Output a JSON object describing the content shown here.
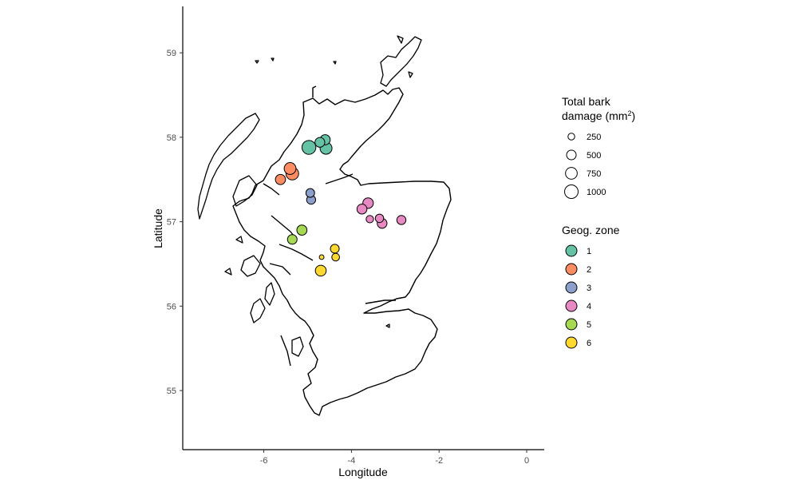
{
  "chart_data": {
    "type": "scatter",
    "xlabel": "Longitude",
    "ylabel": "Latitude",
    "xlim": [
      -7.85,
      0.4
    ],
    "ylim": [
      54.3,
      59.55
    ],
    "x_ticks": [
      -6,
      -4,
      -2,
      0
    ],
    "y_ticks": [
      55,
      56,
      57,
      58,
      59
    ],
    "x_tick_labels": [
      "-6",
      "-4",
      "-2",
      "0"
    ],
    "y_tick_labels": [
      "55",
      "56",
      "57",
      "58",
      "59"
    ],
    "size_legend": {
      "title_line1": "Total bark",
      "title_line2": "damage (mm",
      "title_sup": "2",
      "title_close": ")",
      "entries": [
        {
          "label": "250",
          "value": 250
        },
        {
          "label": "500",
          "value": 500
        },
        {
          "label": "750",
          "value": 750
        },
        {
          "label": "1000",
          "value": 1000
        }
      ]
    },
    "zone_legend": {
      "title": "Geog. zone",
      "entries": [
        {
          "label": "1",
          "color": "#66c2a5"
        },
        {
          "label": "2",
          "color": "#fc8d62"
        },
        {
          "label": "3",
          "color": "#8da0cb"
        },
        {
          "label": "4",
          "color": "#e78ac3"
        },
        {
          "label": "5",
          "color": "#a6d854"
        },
        {
          "label": "6",
          "color": "#ffd92f"
        }
      ]
    },
    "points": [
      {
        "zone": "1",
        "lon": -4.97,
        "lat": 57.88,
        "damage": 1050
      },
      {
        "zone": "1",
        "lon": -4.72,
        "lat": 57.94,
        "damage": 520
      },
      {
        "zone": "1",
        "lon": -4.6,
        "lat": 57.97,
        "damage": 560
      },
      {
        "zone": "1",
        "lon": -4.58,
        "lat": 57.87,
        "damage": 780
      },
      {
        "zone": "2",
        "lon": -5.4,
        "lat": 57.63,
        "damage": 760
      },
      {
        "zone": "2",
        "lon": -5.35,
        "lat": 57.57,
        "damage": 880
      },
      {
        "zone": "2",
        "lon": -5.62,
        "lat": 57.5,
        "damage": 560
      },
      {
        "zone": "3",
        "lon": -4.94,
        "lat": 57.34,
        "damage": 410
      },
      {
        "zone": "3",
        "lon": -4.92,
        "lat": 57.26,
        "damage": 440
      },
      {
        "zone": "4",
        "lon": -3.62,
        "lat": 57.22,
        "damage": 600
      },
      {
        "zone": "4",
        "lon": -3.76,
        "lat": 57.15,
        "damage": 540
      },
      {
        "zone": "4",
        "lon": -3.36,
        "lat": 57.04,
        "damage": 380
      },
      {
        "zone": "4",
        "lon": -3.3,
        "lat": 56.98,
        "damage": 520
      },
      {
        "zone": "4",
        "lon": -3.58,
        "lat": 57.03,
        "damage": 300
      },
      {
        "zone": "4",
        "lon": -2.86,
        "lat": 57.02,
        "damage": 450
      },
      {
        "zone": "5",
        "lon": -5.13,
        "lat": 56.9,
        "damage": 560
      },
      {
        "zone": "5",
        "lon": -5.35,
        "lat": 56.79,
        "damage": 500
      },
      {
        "zone": "6",
        "lon": -4.38,
        "lat": 56.68,
        "damage": 420
      },
      {
        "zone": "6",
        "lon": -4.36,
        "lat": 56.58,
        "damage": 320
      },
      {
        "zone": "6",
        "lon": -4.68,
        "lat": 56.58,
        "damage": 120
      },
      {
        "zone": "6",
        "lon": -4.7,
        "lat": 56.42,
        "damage": 640
      }
    ]
  }
}
